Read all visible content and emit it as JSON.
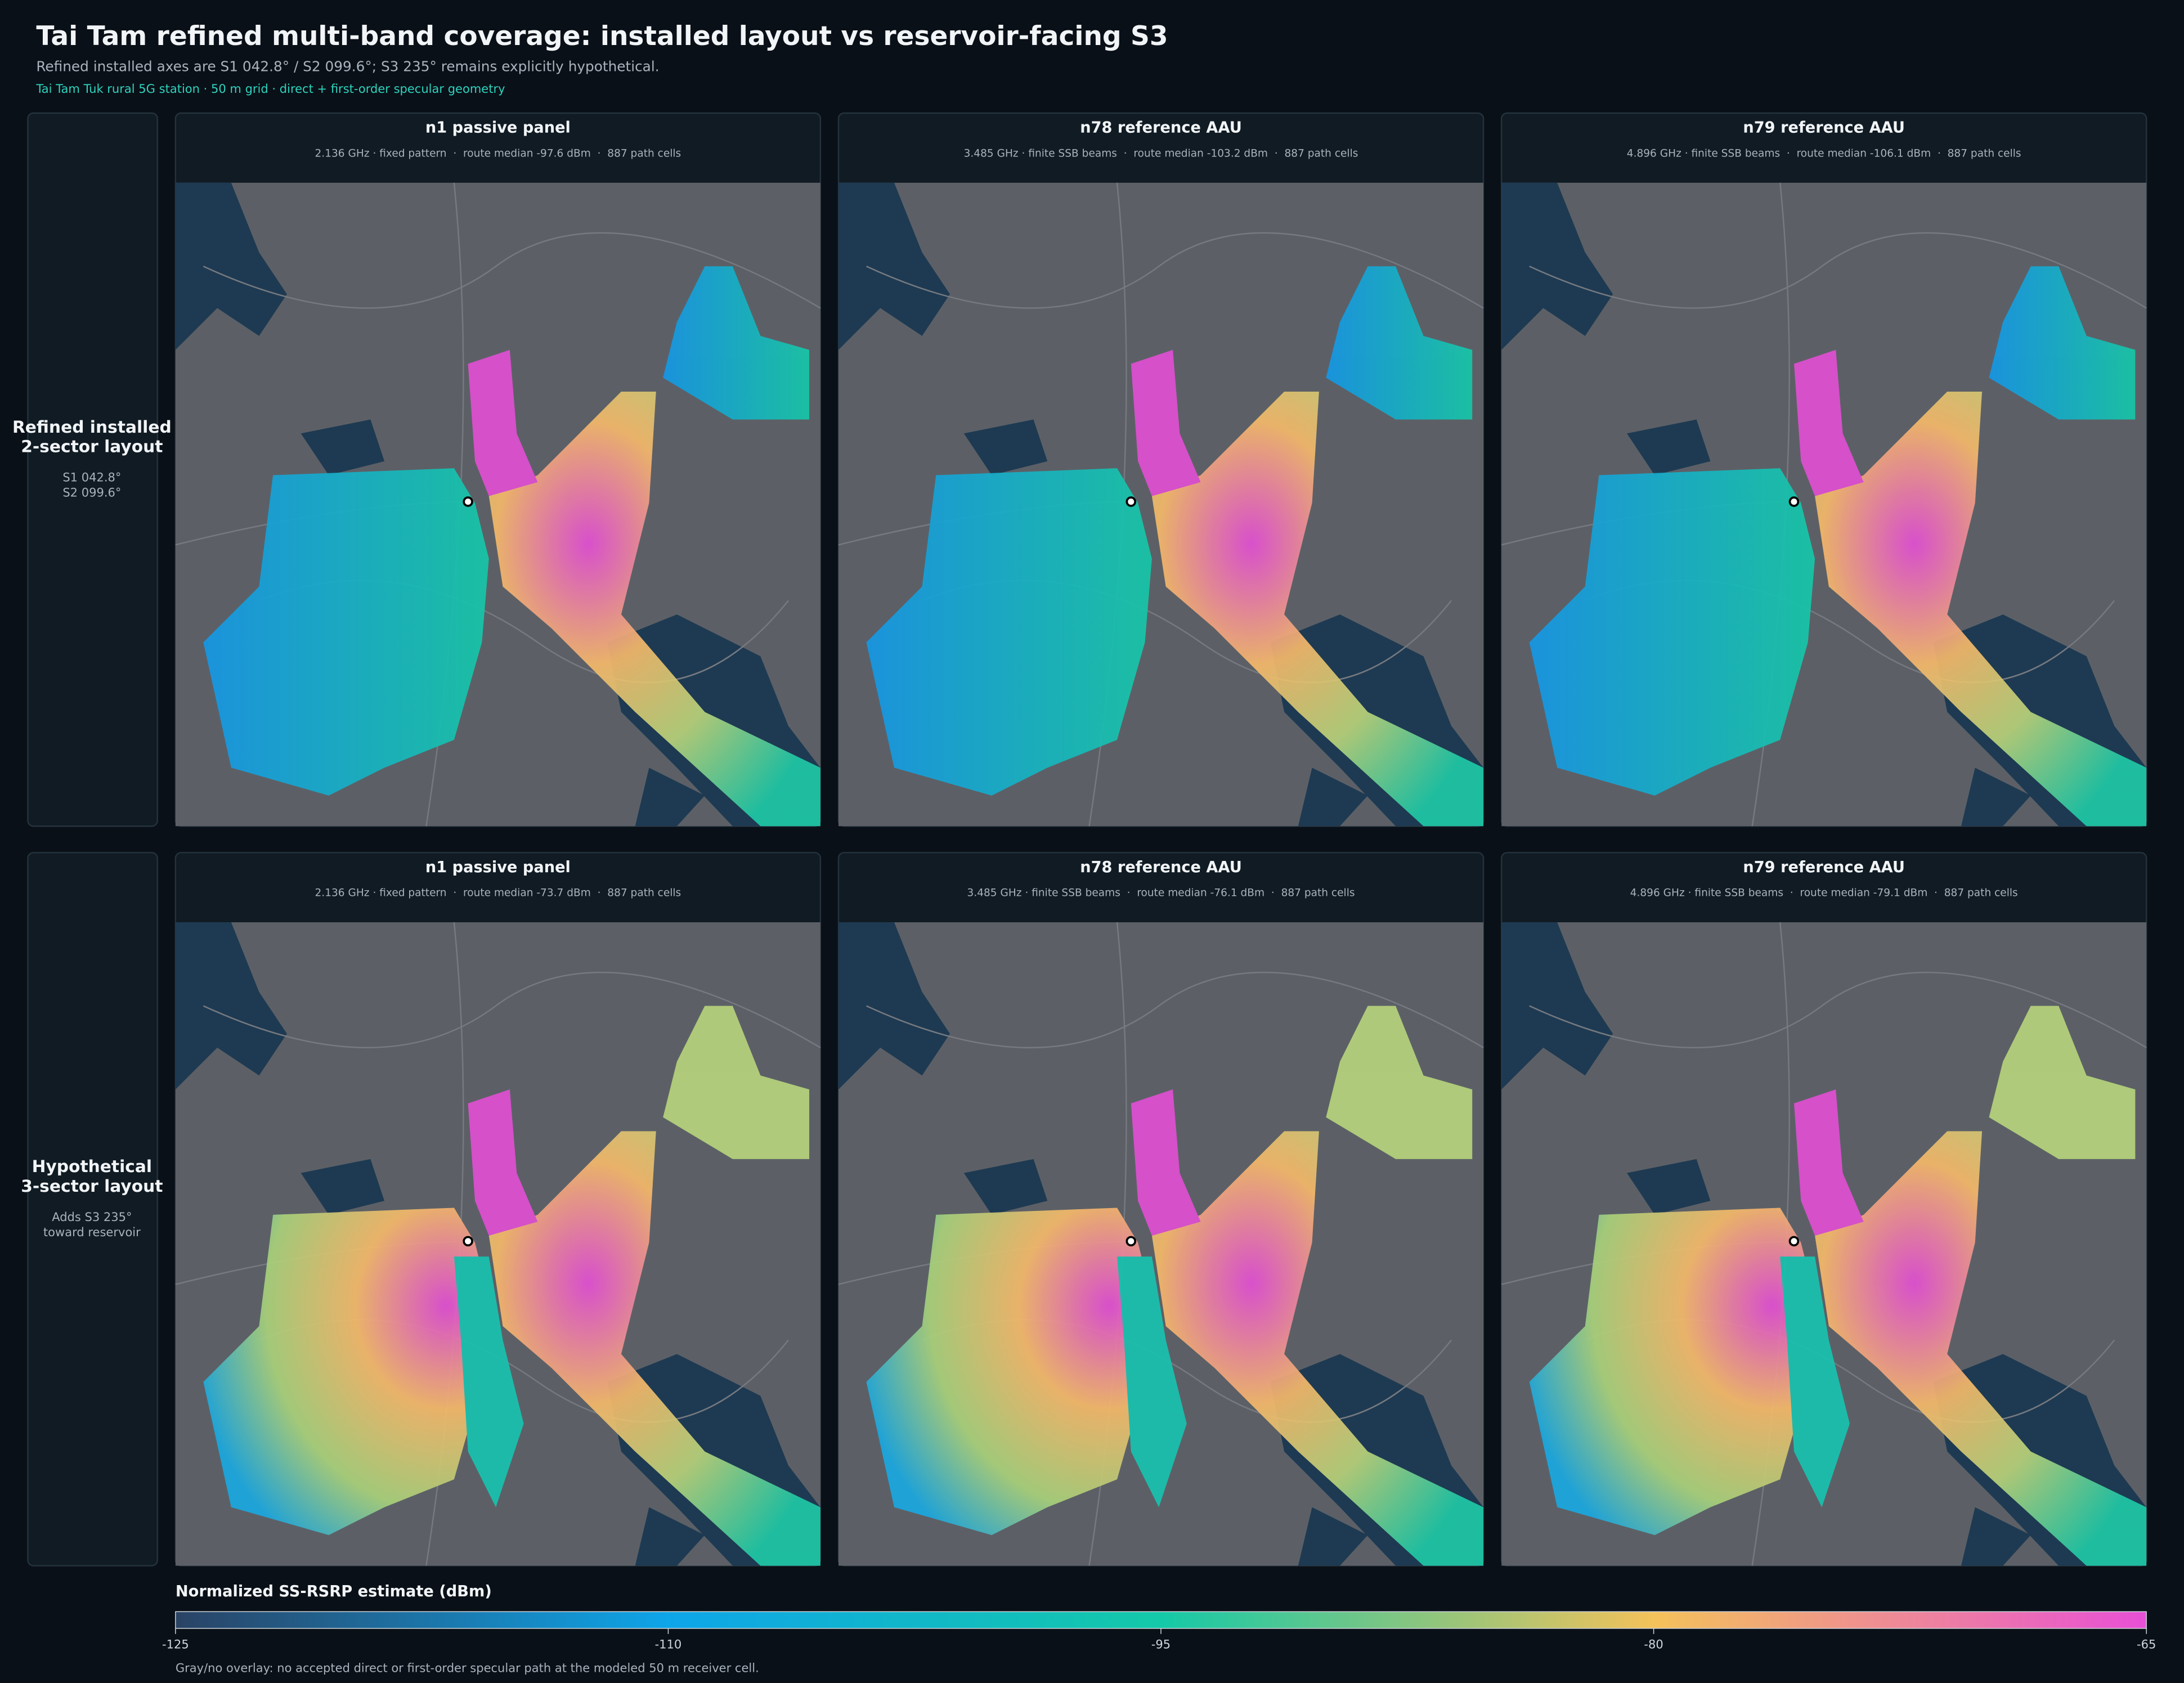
{
  "header": {
    "title": "Tai Tam refined multi-band coverage: installed layout vs reservoir-facing S3",
    "subtitle": "Refined installed axes are S1 042.8° / S2 099.6°; S3 235° remains explicitly hypothetical.",
    "note": "Tai Tam Tuk rural 5G station · 50 m grid · direct + first-order specular geometry"
  },
  "rows": [
    {
      "label_lines": [
        "Refined installed",
        "2-sector layout"
      ],
      "detail_lines": [
        "S1 042.8°",
        "S2 099.6°"
      ],
      "panels": [
        {
          "title": "n1 passive panel",
          "subtitle": "2.136 GHz · fixed pattern  ·  route median -97.6 dBm  ·  887 path cells"
        },
        {
          "title": "n78 reference AAU",
          "subtitle": "3.485 GHz · finite SSB beams  ·  route median -103.2 dBm  ·  887 path cells"
        },
        {
          "title": "n79 reference AAU",
          "subtitle": "4.896 GHz · finite SSB beams  ·  route median -106.1 dBm  ·  887 path cells"
        }
      ]
    },
    {
      "label_lines": [
        "Hypothetical",
        "3-sector layout"
      ],
      "detail_lines": [
        "Adds S3 235°",
        "toward reservoir"
      ],
      "panels": [
        {
          "title": "n1 passive panel",
          "subtitle": "2.136 GHz · fixed pattern  ·  route median -73.7 dBm  ·  887 path cells"
        },
        {
          "title": "n78 reference AAU",
          "subtitle": "3.485 GHz · finite SSB beams  ·  route median -76.1 dBm  ·  887 path cells"
        },
        {
          "title": "n79 reference AAU",
          "subtitle": "4.896 GHz · finite SSB beams  ·  route median -79.1 dBm  ·  887 path cells"
        }
      ]
    }
  ],
  "colorbar": {
    "title": "Normalized SS-RSRP estimate (dBm)",
    "lim": [
      -125,
      -65
    ],
    "ticks": [
      -125,
      -110,
      -95,
      -80,
      -65
    ],
    "colors": [
      "#2a4365",
      "#0ea5e9",
      "#14c9a8",
      "#f4c25a",
      "#e84fd6"
    ],
    "footnote": "Gray/no overlay: no accepted direct or first-order specular path at the modeled 50 m receiver cell."
  }
}
